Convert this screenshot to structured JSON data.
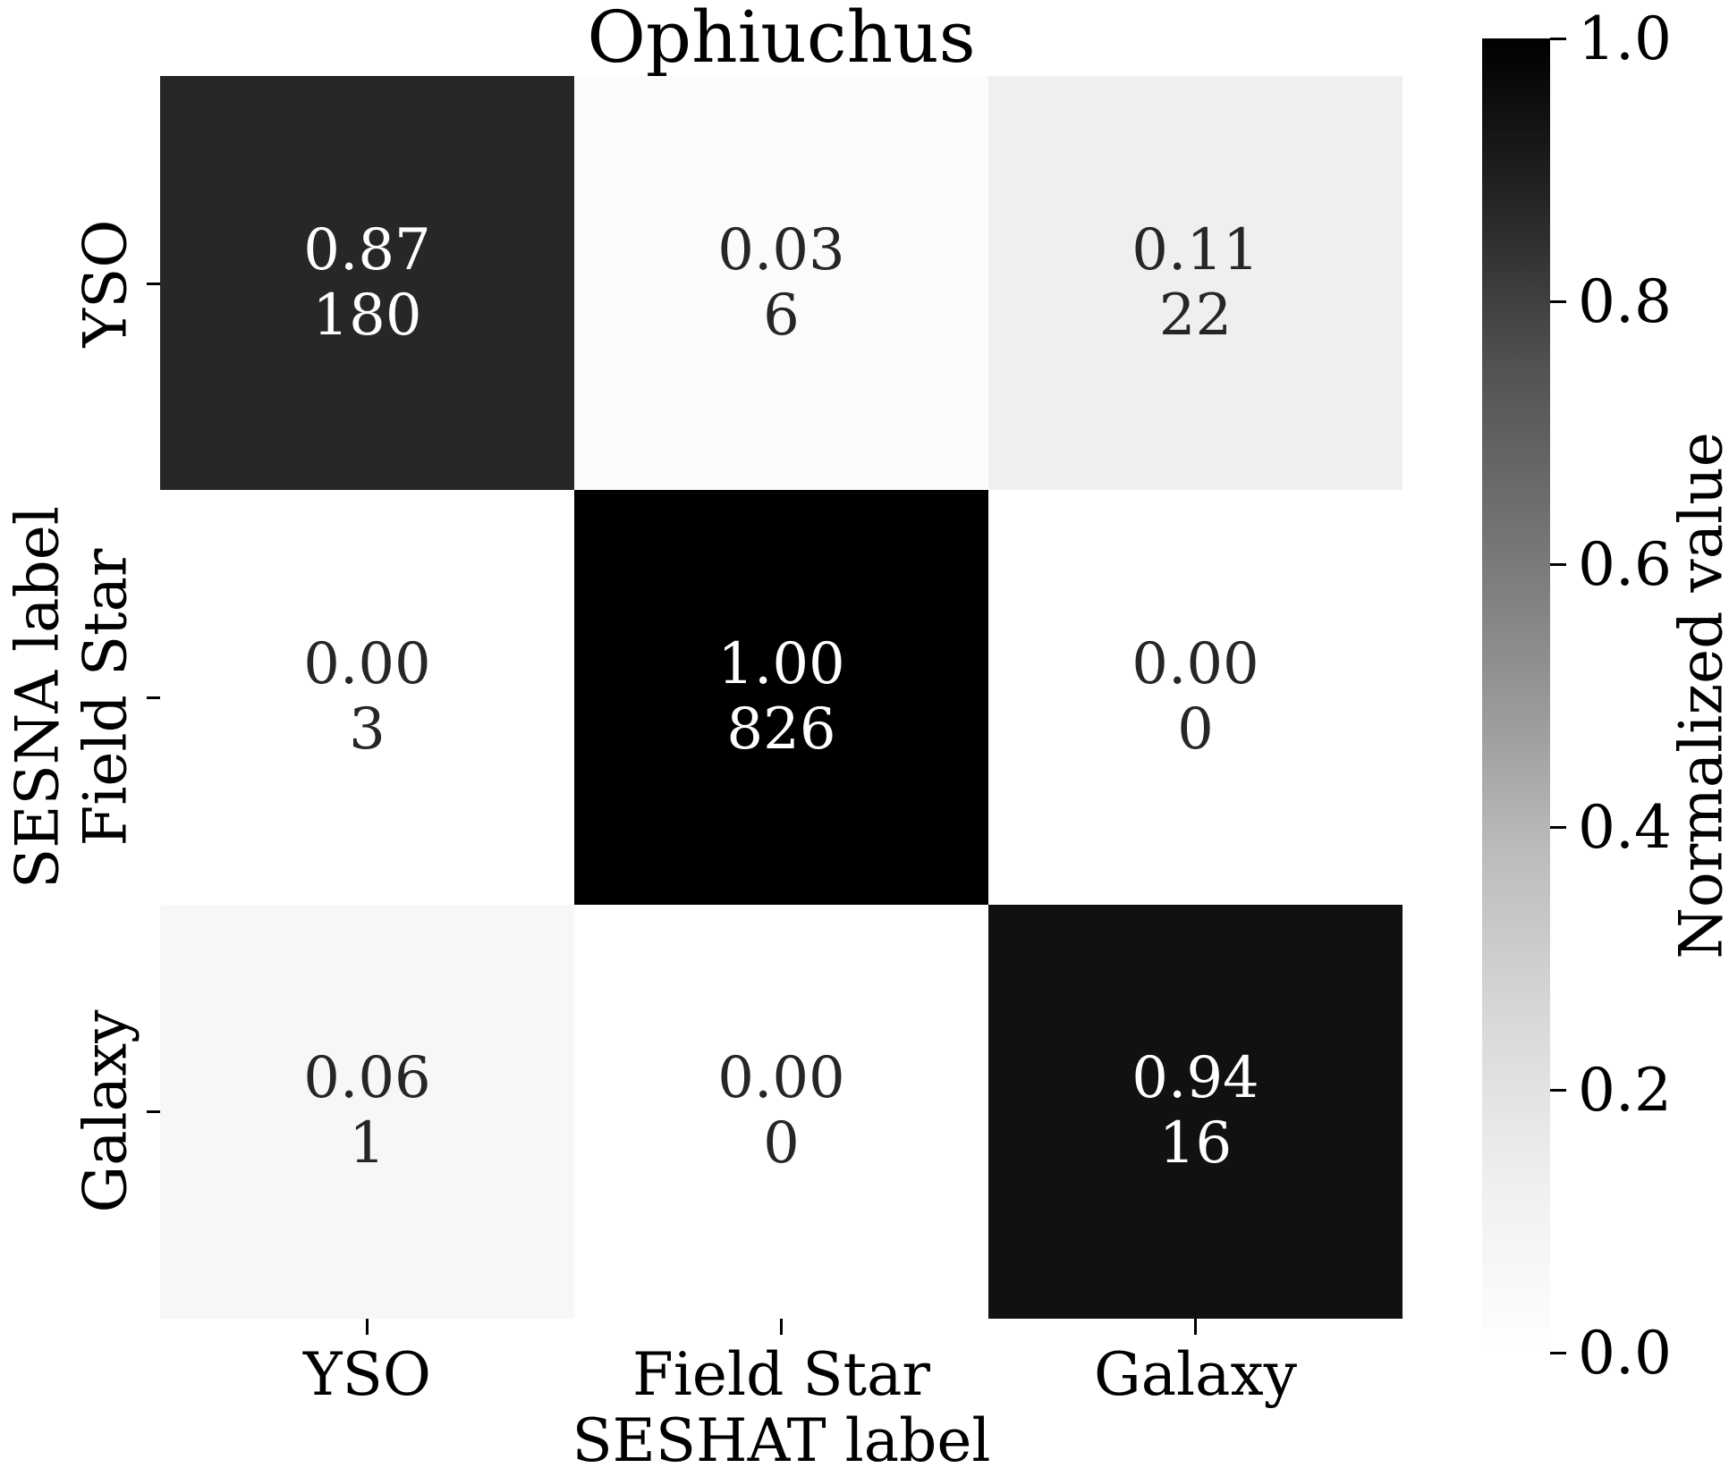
{
  "chart_data": {
    "type": "heatmap",
    "title": "Ophiuchus",
    "xlabel": "SESHAT label",
    "ylabel": "SESNA label",
    "x_categories": [
      "YSO",
      "Field Star",
      "Galaxy"
    ],
    "y_categories": [
      "YSO",
      "Field Star",
      "Galaxy"
    ],
    "normalized_values": [
      [
        0.87,
        0.03,
        0.11
      ],
      [
        0.0,
        1.0,
        0.0
      ],
      [
        0.06,
        0.0,
        0.94
      ]
    ],
    "normalized_labels": [
      [
        "0.87",
        "0.03",
        "0.11"
      ],
      [
        "0.00",
        "1.00",
        "0.00"
      ],
      [
        "0.06",
        "0.00",
        "0.94"
      ]
    ],
    "counts": [
      [
        180,
        6,
        22
      ],
      [
        3,
        826,
        0
      ],
      [
        1,
        0,
        16
      ]
    ],
    "count_labels": [
      [
        "180",
        "6",
        "22"
      ],
      [
        "3",
        "826",
        "0"
      ],
      [
        "1",
        "0",
        "16"
      ]
    ],
    "cell_colors": [
      [
        "#272727",
        "#fbfbfb",
        "#efefef"
      ],
      [
        "#ffffff",
        "#000000",
        "#ffffff"
      ],
      [
        "#f7f7f7",
        "#ffffff",
        "#111111"
      ]
    ],
    "annotation_colors": {
      "on_dark": "#ffffff",
      "on_light": "#262626"
    },
    "grid": false,
    "colorbar": {
      "label": "Normalized value",
      "min": 0.0,
      "max": 1.0,
      "tick_labels": [
        "1.0",
        "0.8",
        "0.6",
        "0.4",
        "0.2",
        "0.0"
      ],
      "colormap": "Greys",
      "gradient_top_to_bottom": [
        "#000000",
        "#252525",
        "#525252",
        "#737373",
        "#969696",
        "#bdbdbd",
        "#d9d9d9",
        "#f0f0f0",
        "#ffffff"
      ]
    }
  }
}
